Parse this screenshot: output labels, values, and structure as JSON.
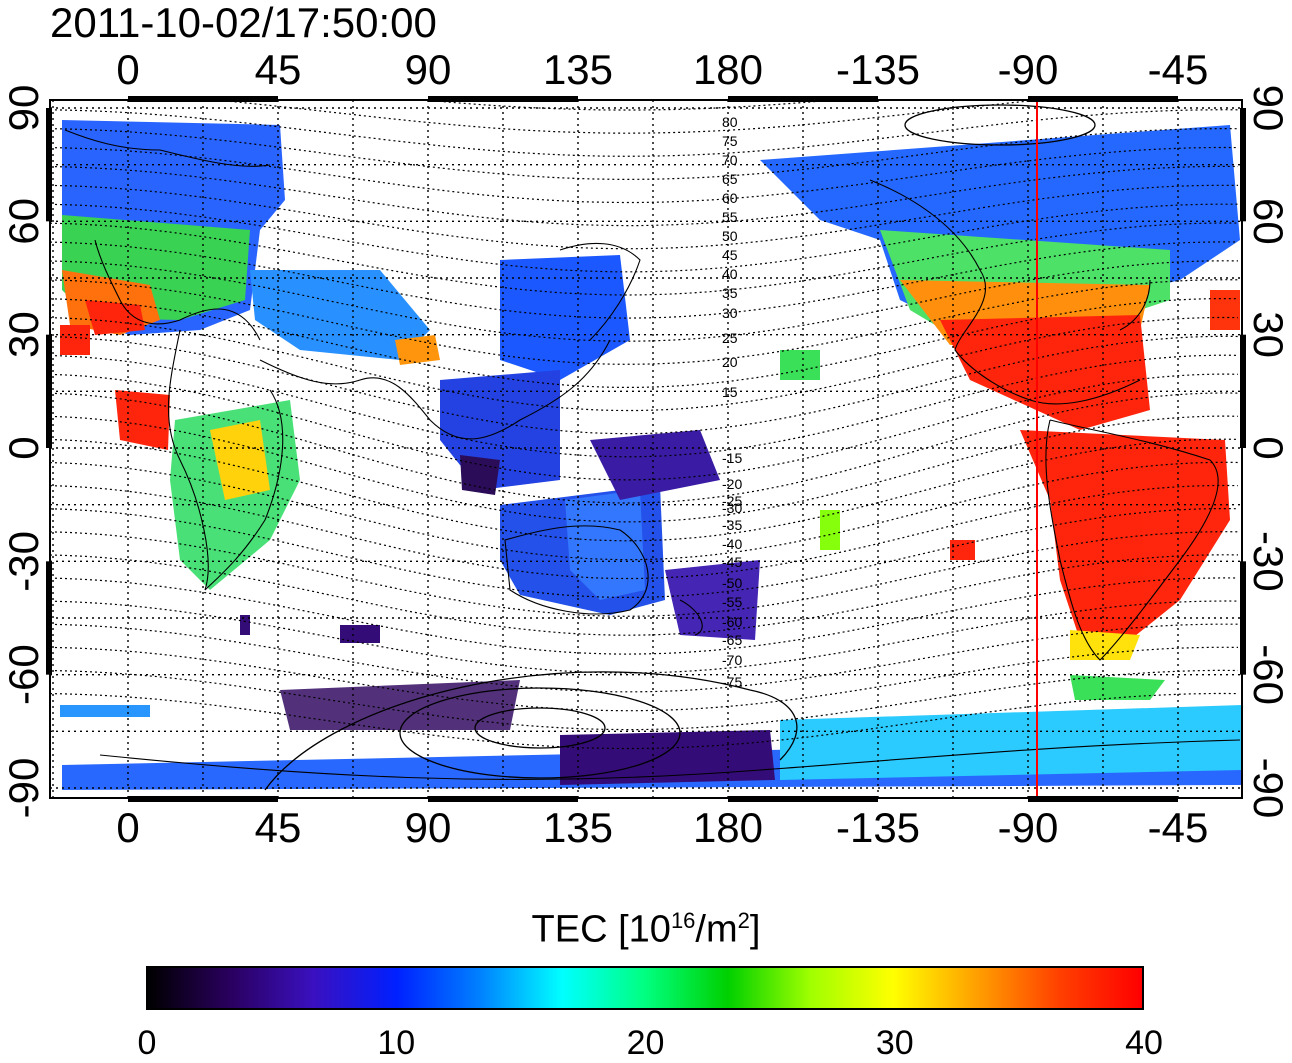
{
  "title": "2011-10-02/17:50:00",
  "map": {
    "top_lon_ticks": [
      "0",
      "45",
      "90",
      "135",
      "180",
      "-135",
      "-90",
      "-45"
    ],
    "bottom_lon_ticks": [
      "0",
      "45",
      "90",
      "135",
      "180",
      "-135",
      "-90",
      "-45"
    ],
    "left_lat_ticks": [
      "90",
      "60",
      "30",
      "0",
      "-30",
      "-60",
      "-90"
    ],
    "right_lat_ticks": [
      "90",
      "60",
      "30",
      "0",
      "-30",
      "-60",
      "-90"
    ],
    "contour_labels": [
      "80",
      "75",
      "70",
      "65",
      "60",
      "55",
      "50",
      "45",
      "40",
      "35",
      "30",
      "25",
      "20",
      "15",
      "-15",
      "-20",
      "-25",
      "-30",
      "-35",
      "-40",
      "-45",
      "-50",
      "-55",
      "-60",
      "-65",
      "-70",
      "-75"
    ],
    "red_meridian_lon": -87,
    "tec_regions_colors": {
      "high": "#ff1a00",
      "mid": "#22dd44",
      "low": "#1050ff",
      "min": "#2a0060"
    }
  },
  "colorbar": {
    "title_prefix": "TEC  [10",
    "title_exp": "16",
    "title_mid": "/m",
    "title_exp2": "2",
    "title_suffix": "]",
    "min": 0,
    "max": 40,
    "tick_labels": [
      "0",
      "10",
      "20",
      "30",
      "40"
    ],
    "colors": [
      "#000000",
      "#2a0060",
      "#3a10c0",
      "#0020ff",
      "#0080ff",
      "#00ffff",
      "#00ff80",
      "#00d000",
      "#a0ff00",
      "#ffff00",
      "#ffa000",
      "#ff4000",
      "#ff0000"
    ]
  }
}
